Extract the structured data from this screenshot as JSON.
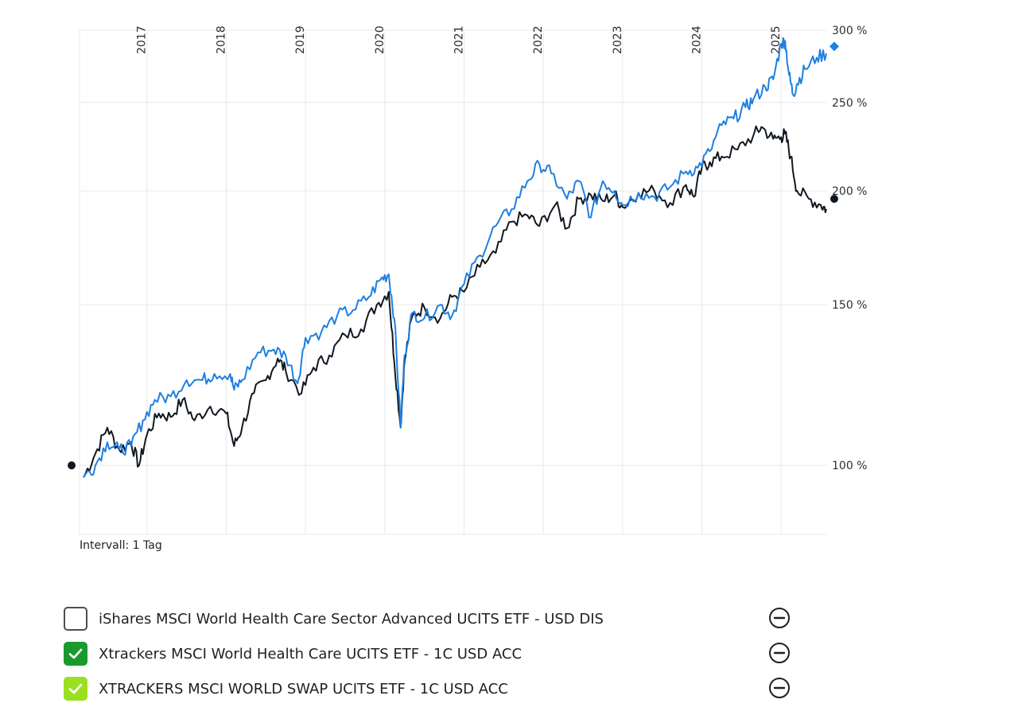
{
  "chart_data": {
    "type": "line",
    "x_ticks": [
      "2017",
      "2018",
      "2019",
      "2020",
      "2021",
      "2022",
      "2023",
      "2024",
      "2025"
    ],
    "x_range": [
      2016.15,
      2025.58
    ],
    "y_scale": "log",
    "y_ticks": [
      {
        "value": 100,
        "label": "100 %"
      },
      {
        "value": 150,
        "label": "150 %"
      },
      {
        "value": 200,
        "label": "200 %"
      },
      {
        "value": 250,
        "label": "250 %"
      },
      {
        "value": 300,
        "label": "300 %"
      }
    ],
    "ylim": [
      84,
      300
    ],
    "series": [
      {
        "name": "Xtrackers MSCI World Health Care UCITS ETF - 1C USD ACC",
        "color": "#111820",
        "start_marker": {
          "x": 2016.05,
          "y": 100
        },
        "end_marker": {
          "x": 2025.67,
          "y": 196
        },
        "x": [
          2016.2,
          2016.35,
          2016.5,
          2016.65,
          2016.8,
          2016.9,
          2017.0,
          2017.15,
          2017.3,
          2017.45,
          2017.6,
          2017.8,
          2018.0,
          2018.1,
          2018.2,
          2018.35,
          2018.5,
          2018.65,
          2018.75,
          2018.95,
          2019.1,
          2019.3,
          2019.5,
          2019.7,
          2019.9,
          2020.05,
          2020.12,
          2020.2,
          2020.25,
          2020.35,
          2020.5,
          2020.7,
          2020.85,
          2021.0,
          2021.2,
          2021.4,
          2021.6,
          2021.8,
          2021.95,
          2022.15,
          2022.3,
          2022.45,
          2022.6,
          2022.75,
          2022.9,
          2023.0,
          2023.2,
          2023.4,
          2023.6,
          2023.8,
          2023.9,
          2024.0,
          2024.1,
          2024.25,
          2024.45,
          2024.65,
          2024.75,
          2024.9,
          2025.0,
          2025.05,
          2025.12,
          2025.2,
          2025.35,
          2025.5,
          2025.57
        ],
        "y": [
          97,
          103,
          110,
          104,
          106,
          100,
          108,
          114,
          113,
          118,
          112,
          116,
          114,
          105,
          110,
          120,
          124,
          131,
          127,
          120,
          128,
          132,
          139,
          141,
          150,
          155,
          130,
          110,
          130,
          146,
          149,
          145,
          153,
          155,
          165,
          171,
          185,
          188,
          183,
          193,
          182,
          196,
          198,
          195,
          198,
          192,
          199,
          200,
          194,
          203,
          197,
          212,
          215,
          218,
          222,
          230,
          235,
          228,
          229,
          231,
          218,
          200,
          196,
          193,
          191
        ]
      },
      {
        "name": "XTRACKERS MSCI WORLD SWAP UCITS ETF - 1C USD ACC",
        "color": "#1f7fe0",
        "end_marker": {
          "x": 2025.67,
          "y": 288
        },
        "x": [
          2016.2,
          2016.35,
          2016.5,
          2016.65,
          2016.8,
          2016.95,
          2017.1,
          2017.3,
          2017.5,
          2017.7,
          2017.85,
          2018.05,
          2018.1,
          2018.2,
          2018.4,
          2018.6,
          2018.75,
          2018.9,
          2019.0,
          2019.2,
          2019.4,
          2019.6,
          2019.8,
          2019.95,
          2020.05,
          2020.12,
          2020.2,
          2020.25,
          2020.35,
          2020.5,
          2020.7,
          2020.85,
          2021.0,
          2021.2,
          2021.4,
          2021.6,
          2021.8,
          2021.95,
          2022.1,
          2022.3,
          2022.45,
          2022.6,
          2022.75,
          2022.9,
          2023.0,
          2023.2,
          2023.4,
          2023.6,
          2023.8,
          2023.95,
          2024.1,
          2024.25,
          2024.4,
          2024.55,
          2024.65,
          2024.8,
          2024.9,
          2025.0,
          2025.05,
          2025.1,
          2025.15,
          2025.2,
          2025.3,
          2025.45,
          2025.57
        ],
        "y": [
          97,
          100,
          106,
          104,
          105,
          112,
          118,
          119,
          124,
          124,
          126,
          126,
          121,
          124,
          133,
          134,
          132,
          123,
          138,
          140,
          146,
          148,
          153,
          160,
          162,
          145,
          110,
          132,
          147,
          145,
          150,
          146,
          158,
          170,
          183,
          191,
          205,
          214,
          209,
          196,
          205,
          187,
          205,
          200,
          193,
          199,
          197,
          202,
          210,
          212,
          221,
          236,
          240,
          247,
          252,
          260,
          265,
          290,
          292,
          268,
          255,
          262,
          272,
          280,
          283
        ]
      }
    ],
    "interval_label": "Intervall: 1 Tag"
  },
  "legend": {
    "items": [
      {
        "label": "iShares MSCI World Health Care Sector Advanced UCITS ETF - USD DIS",
        "checked": false,
        "checkbox_color": "#ffffff"
      },
      {
        "label": "Xtrackers MSCI World Health Care UCITS ETF - 1C USD ACC",
        "checked": true,
        "checkbox_color": "#1a9a2e"
      },
      {
        "label": "XTRACKERS MSCI WORLD SWAP UCITS ETF - 1C USD ACC",
        "checked": true,
        "checkbox_color": "#9be020"
      }
    ]
  },
  "icons": {
    "checkbox_check": "check-icon",
    "remove": "minus-circle-icon"
  },
  "colors": {
    "grid": "#e8e8e8",
    "axis_text": "#2b2f35",
    "text": "#1d2025"
  }
}
